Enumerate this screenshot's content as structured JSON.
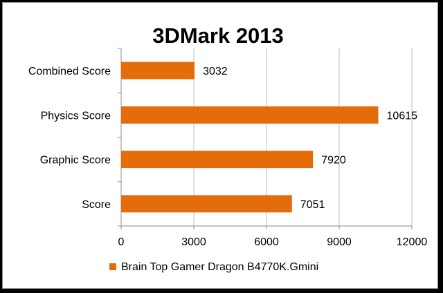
{
  "chart_data": {
    "type": "bar",
    "orientation": "horizontal",
    "title": "3DMark 2013",
    "categories": [
      "Combined Score",
      "Physics Score",
      "Graphic Score",
      "Score"
    ],
    "series": [
      {
        "name": "Brain Top Gamer Dragon B4770K.Gmini",
        "values": [
          3032,
          10615,
          7920,
          7051
        ]
      }
    ],
    "xlim": [
      0,
      12000
    ],
    "xticks": [
      0,
      3000,
      6000,
      9000,
      12000
    ],
    "grid": true,
    "legend_position": "bottom",
    "colors": {
      "bar": "#E46C0A",
      "grid": "#BFBFBF",
      "axis": "#8C8C8C"
    }
  }
}
